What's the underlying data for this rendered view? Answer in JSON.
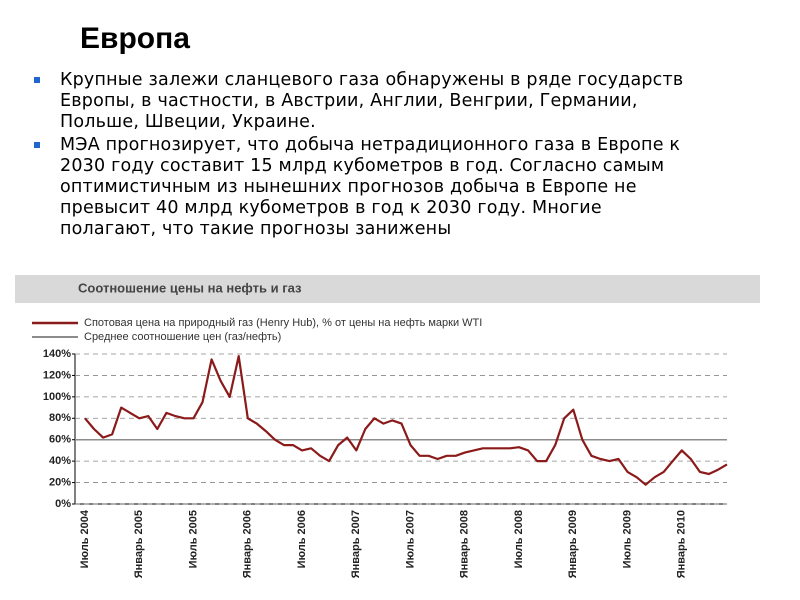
{
  "header": {
    "title": "Европа"
  },
  "bullets": [
    "Крупные залежи сланцевого газа обнаружены в ряде государств Европы, в частности, в Австрии, Англии, Венгрии, Германии, Польше, Швеции, Украине.",
    "МЭА прогнозирует, что добыча нетрадиционного газа в Европе к 2030 году составит 15 млрд кубометров в год. Согласно самым оптимистичным из нынешних прогнозов добыча в Европе не превысит 40 млрд кубометров в год к 2030 году. Многие полагают, что такие прогнозы занижены"
  ],
  "chart_data": {
    "type": "line",
    "title": "Соотношение цены на нефть и газ",
    "categories": [
      "Июль 2004",
      null,
      null,
      null,
      null,
      null,
      "Январь 2005",
      null,
      null,
      null,
      null,
      null,
      "Июль 2005",
      null,
      null,
      null,
      null,
      null,
      "Январь 2006",
      null,
      null,
      null,
      null,
      null,
      "Июль 2006",
      null,
      null,
      null,
      null,
      null,
      "Январь 2007",
      null,
      null,
      null,
      null,
      null,
      "Июль 2007",
      null,
      null,
      null,
      null,
      null,
      "Январь 2008",
      null,
      null,
      null,
      null,
      null,
      "Июль 2008",
      null,
      null,
      null,
      null,
      null,
      "Январь 2009",
      null,
      null,
      null,
      null,
      null,
      "Июль 2009",
      null,
      null,
      null,
      null,
      null,
      "Январь 2010",
      null,
      null,
      null,
      null,
      null
    ],
    "series": [
      {
        "name": "Спотовая цена на природный газ (Henry Hub), % от цены на нефть марки WTI",
        "color": "#8b1a1a",
        "values": [
          80,
          70,
          62,
          65,
          90,
          85,
          80,
          82,
          70,
          85,
          82,
          80,
          80,
          95,
          135,
          115,
          100,
          138,
          80,
          75,
          68,
          60,
          55,
          55,
          50,
          52,
          45,
          40,
          55,
          62,
          50,
          70,
          80,
          75,
          78,
          75,
          55,
          45,
          45,
          42,
          45,
          45,
          48,
          50,
          52,
          52,
          52,
          52,
          53,
          50,
          40,
          40,
          55,
          80,
          88,
          60,
          45,
          42,
          40,
          42,
          30,
          25,
          18,
          25,
          30,
          40,
          50,
          42,
          30,
          28,
          32,
          37
        ]
      }
    ],
    "reference_line": {
      "name": "Среднее соотношение цен (газ/нефть)",
      "color": "#8c8c8c",
      "value": 60
    },
    "ylim": [
      0,
      140
    ],
    "yticks": [
      {
        "value": 0,
        "label": "0%"
      },
      {
        "value": 20,
        "label": "20%"
      },
      {
        "value": 40,
        "label": "40%"
      },
      {
        "value": 60,
        "label": "60%"
      },
      {
        "value": 80,
        "label": "80%"
      },
      {
        "value": 100,
        "label": "100%"
      },
      {
        "value": 120,
        "label": "120%"
      },
      {
        "value": 140,
        "label": "140%"
      }
    ],
    "grid": true
  }
}
